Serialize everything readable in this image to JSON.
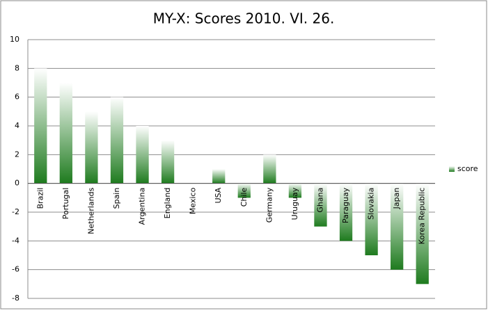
{
  "chart_data": {
    "type": "bar",
    "title": "MY-X: Scores 2010. VI. 26.",
    "categories": [
      "Brazil",
      "Portugal",
      "Netherlands",
      "Spain",
      "Argentina",
      "England",
      "Mexico",
      "USA",
      "Chile",
      "Germany",
      "Uruguay",
      "Ghana",
      "Paraguay",
      "Slovakia",
      "Japan",
      "Korea Republic"
    ],
    "series": [
      {
        "name": "score",
        "color": "#1e7b1e",
        "values": [
          8,
          7,
          5,
          6,
          4,
          3,
          0,
          1,
          -1,
          2,
          -1,
          -3,
          -4,
          -5,
          -6,
          -7
        ]
      }
    ],
    "ylim": [
      -8,
      10
    ],
    "yticks": [
      -8,
      -6,
      -4,
      -2,
      0,
      2,
      4,
      6,
      8,
      10
    ],
    "grid": true,
    "legend": "right"
  }
}
